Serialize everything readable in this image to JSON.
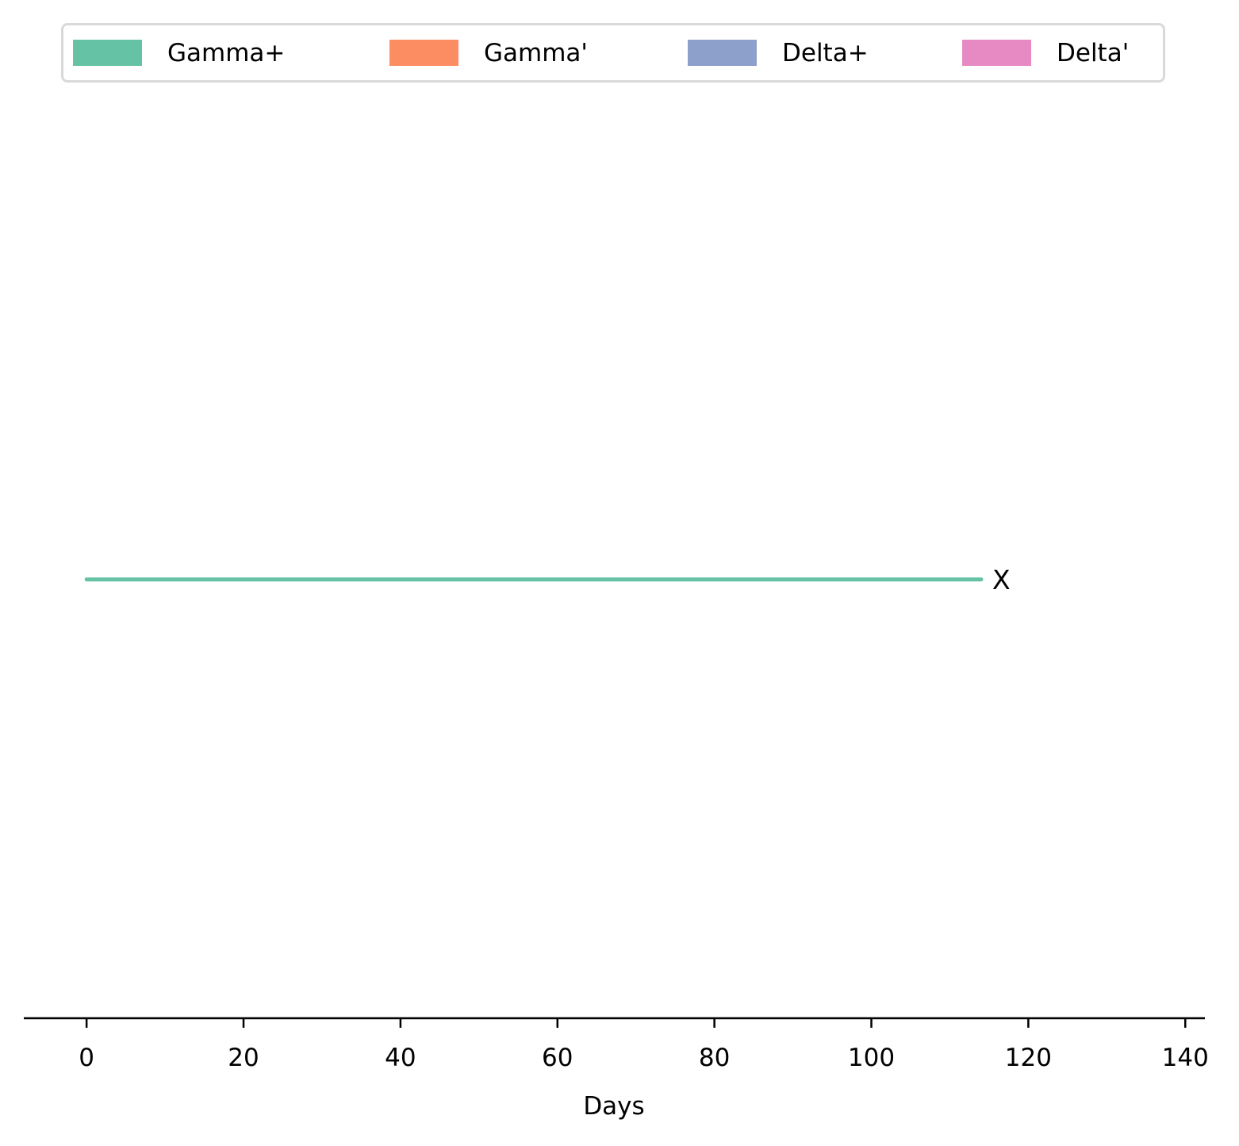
{
  "chart_data": {
    "type": "line",
    "xlabel": "Days",
    "ylabel": "",
    "xlim": [
      -8,
      142.5
    ],
    "xticks": [
      0,
      20,
      40,
      60,
      80,
      100,
      120,
      140
    ],
    "xtick_labels": [
      "0",
      "20",
      "40",
      "60",
      "80",
      "100",
      "120",
      "140"
    ],
    "grid": false,
    "legend_position": "top",
    "legend": [
      {
        "name": "Gamma+",
        "color": "#66c2a5"
      },
      {
        "name": "Gamma'",
        "color": "#fc8d62"
      },
      {
        "name": "Delta+",
        "color": "#8da0cb"
      },
      {
        "name": "Delta'",
        "color": "#e78ac3"
      }
    ],
    "series": [
      {
        "category": "Gamma+",
        "color": "#66c2a5",
        "start": 0,
        "end": 114,
        "end_marker": "X"
      }
    ]
  }
}
